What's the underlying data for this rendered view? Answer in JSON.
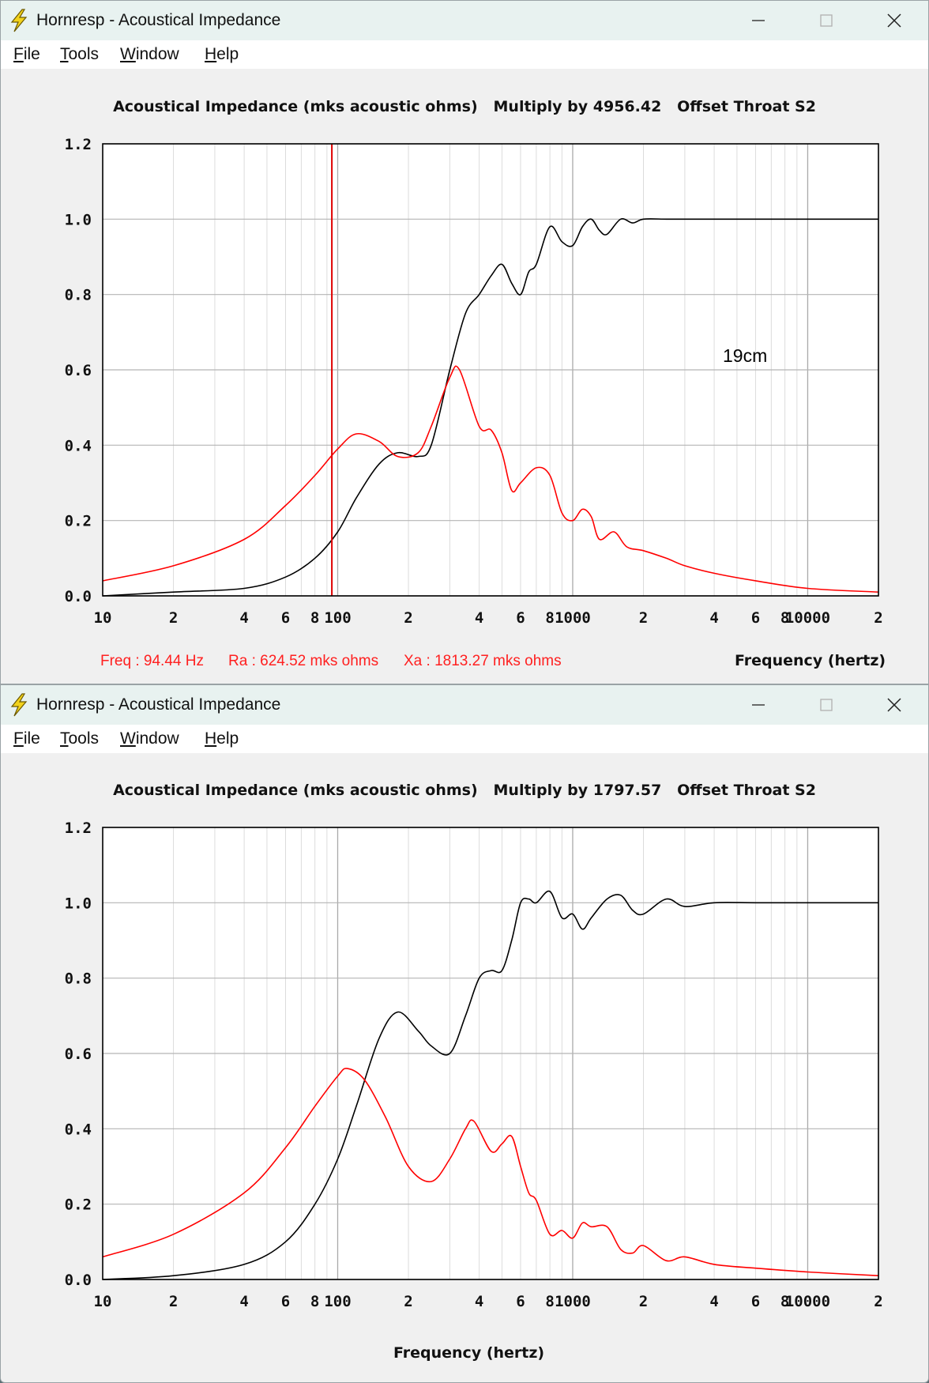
{
  "windows": [
    {
      "title": "Hornresp - Acoustical Impedance",
      "menu": [
        {
          "mnemonic": "F",
          "rest": "ile"
        },
        {
          "mnemonic": "T",
          "rest": "ools"
        },
        {
          "mnemonic": "W",
          "rest": "indow"
        },
        {
          "mnemonic": "H",
          "rest": "elp"
        }
      ],
      "chart_title": "Acoustical Impedance (mks acoustic ohms)   Multiply by 4956.42   Offset Throat S2",
      "status": {
        "freq": "Freq : 94.44 Hz",
        "ra": "Ra : 624.52 mks ohms",
        "xa": "Xa : 1813.27 mks ohms"
      },
      "xlabel": "Frequency (hertz)",
      "annotation": "19cm"
    },
    {
      "title": "Hornresp - Acoustical Impedance",
      "menu": [
        {
          "mnemonic": "F",
          "rest": "ile"
        },
        {
          "mnemonic": "T",
          "rest": "ools"
        },
        {
          "mnemonic": "W",
          "rest": "indow"
        },
        {
          "mnemonic": "H",
          "rest": "elp"
        }
      ],
      "chart_title": "Acoustical Impedance (mks acoustic ohms)   Multiply by 1797.57   Offset Throat S2",
      "xlabel": "Frequency (hertz)"
    }
  ],
  "chart_data": [
    {
      "type": "line",
      "x_scale": "log",
      "xlim": [
        10,
        20000
      ],
      "ylim": [
        0,
        1.2
      ],
      "grid": true,
      "x_tick_labels": [
        "10",
        "2",
        "4",
        "6",
        "8",
        "100",
        "2",
        "4",
        "6",
        "8",
        "1000",
        "2",
        "4",
        "6",
        "8",
        "10000",
        "2"
      ],
      "y_tick_labels": [
        "0.0",
        "0.2",
        "0.4",
        "0.6",
        "0.8",
        "1.0",
        "1.2"
      ],
      "y_ticks": [
        0,
        0.2,
        0.4,
        0.6,
        0.8,
        1.0,
        1.2
      ],
      "cursor_x": 94.44,
      "series": [
        {
          "color": "#000000",
          "x": [
            10,
            20,
            40,
            60,
            80,
            100,
            120,
            150,
            180,
            220,
            250,
            300,
            350,
            400,
            450,
            500,
            550,
            600,
            650,
            700,
            800,
            900,
            1000,
            1100,
            1200,
            1300,
            1400,
            1600,
            1800,
            2000,
            2500,
            3000,
            4000,
            6000,
            10000,
            20000
          ],
          "y": [
            0.0,
            0.01,
            0.02,
            0.05,
            0.1,
            0.17,
            0.26,
            0.35,
            0.38,
            0.37,
            0.4,
            0.6,
            0.75,
            0.8,
            0.85,
            0.88,
            0.83,
            0.8,
            0.86,
            0.88,
            0.98,
            0.94,
            0.93,
            0.98,
            1.0,
            0.97,
            0.96,
            1.0,
            0.99,
            1.0,
            1.0,
            1.0,
            1.0,
            1.0,
            1.0,
            1.0
          ]
        },
        {
          "color": "#ff0000",
          "x": [
            10,
            20,
            40,
            60,
            80,
            100,
            120,
            150,
            180,
            220,
            250,
            300,
            330,
            400,
            450,
            500,
            550,
            600,
            700,
            800,
            900,
            1000,
            1100,
            1200,
            1300,
            1500,
            1700,
            2000,
            2500,
            3000,
            4000,
            6000,
            10000,
            20000
          ],
          "y": [
            0.04,
            0.08,
            0.15,
            0.24,
            0.32,
            0.39,
            0.43,
            0.41,
            0.37,
            0.38,
            0.45,
            0.58,
            0.6,
            0.45,
            0.44,
            0.38,
            0.28,
            0.3,
            0.34,
            0.32,
            0.22,
            0.2,
            0.23,
            0.21,
            0.15,
            0.17,
            0.13,
            0.12,
            0.1,
            0.08,
            0.06,
            0.04,
            0.02,
            0.01
          ]
        }
      ]
    },
    {
      "type": "line",
      "x_scale": "log",
      "xlim": [
        10,
        20000
      ],
      "ylim": [
        0,
        1.2
      ],
      "grid": true,
      "x_tick_labels": [
        "10",
        "2",
        "4",
        "6",
        "8",
        "100",
        "2",
        "4",
        "6",
        "8",
        "1000",
        "2",
        "4",
        "6",
        "8",
        "10000",
        "2"
      ],
      "y_tick_labels": [
        "0.0",
        "0.2",
        "0.4",
        "0.6",
        "0.8",
        "1.0",
        "1.2"
      ],
      "y_ticks": [
        0,
        0.2,
        0.4,
        0.6,
        0.8,
        1.0,
        1.2
      ],
      "series": [
        {
          "color": "#000000",
          "x": [
            10,
            20,
            40,
            60,
            80,
            100,
            120,
            150,
            180,
            220,
            250,
            300,
            350,
            400,
            450,
            500,
            550,
            600,
            650,
            700,
            800,
            900,
            1000,
            1100,
            1200,
            1400,
            1600,
            1800,
            2000,
            2500,
            3000,
            4000,
            6000,
            10000,
            20000
          ],
          "y": [
            0.0,
            0.01,
            0.04,
            0.1,
            0.2,
            0.32,
            0.46,
            0.64,
            0.71,
            0.66,
            0.62,
            0.6,
            0.7,
            0.8,
            0.82,
            0.82,
            0.9,
            1.0,
            1.01,
            1.0,
            1.03,
            0.96,
            0.97,
            0.93,
            0.96,
            1.01,
            1.02,
            0.98,
            0.97,
            1.01,
            0.99,
            1.0,
            1.0,
            1.0,
            1.0
          ]
        },
        {
          "color": "#ff0000",
          "x": [
            10,
            20,
            40,
            60,
            80,
            100,
            110,
            130,
            160,
            200,
            250,
            300,
            350,
            380,
            450,
            500,
            550,
            600,
            650,
            700,
            800,
            900,
            1000,
            1100,
            1200,
            1400,
            1600,
            1800,
            2000,
            2500,
            3000,
            4000,
            6000,
            10000,
            20000
          ],
          "y": [
            0.06,
            0.12,
            0.23,
            0.35,
            0.46,
            0.54,
            0.56,
            0.53,
            0.43,
            0.3,
            0.26,
            0.32,
            0.4,
            0.42,
            0.34,
            0.36,
            0.38,
            0.3,
            0.23,
            0.21,
            0.12,
            0.13,
            0.11,
            0.15,
            0.14,
            0.14,
            0.08,
            0.07,
            0.09,
            0.05,
            0.06,
            0.04,
            0.03,
            0.02,
            0.01
          ]
        }
      ]
    }
  ]
}
